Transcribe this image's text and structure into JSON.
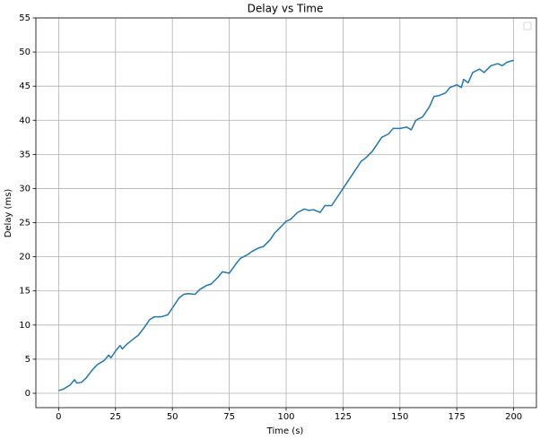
{
  "chart_data": {
    "type": "line",
    "title": "Delay vs Time",
    "xlabel": "Time (s)",
    "ylabel": "Delay (ms)",
    "x": [
      0,
      2,
      5,
      7,
      8,
      10,
      12,
      15,
      17,
      20,
      22,
      23,
      25,
      27,
      28,
      30,
      33,
      35,
      38,
      40,
      42,
      45,
      48,
      50,
      53,
      55,
      57,
      60,
      62,
      65,
      67,
      70,
      72,
      75,
      78,
      80,
      83,
      85,
      88,
      90,
      93,
      95,
      98,
      100,
      102,
      105,
      108,
      110,
      112,
      115,
      117,
      120,
      122,
      125,
      127,
      130,
      133,
      135,
      138,
      140,
      142,
      145,
      147,
      150,
      153,
      155,
      157,
      160,
      163,
      165,
      167,
      170,
      172,
      175,
      177,
      178,
      180,
      182,
      185,
      187,
      190,
      193,
      195,
      197,
      200
    ],
    "values": [
      0.4,
      0.6,
      1.2,
      2.0,
      1.5,
      1.6,
      2.2,
      3.5,
      4.2,
      4.8,
      5.6,
      5.2,
      6.2,
      7.0,
      6.5,
      7.2,
      8.0,
      8.5,
      9.8,
      10.8,
      11.2,
      11.2,
      11.5,
      12.5,
      14.0,
      14.5,
      14.6,
      14.5,
      15.2,
      15.8,
      16.0,
      17.0,
      17.8,
      17.6,
      19.0,
      19.8,
      20.3,
      20.8,
      21.3,
      21.5,
      22.5,
      23.5,
      24.5,
      25.2,
      25.5,
      26.5,
      27.0,
      26.8,
      26.9,
      26.5,
      27.5,
      27.5,
      28.5,
      30.0,
      31.0,
      32.5,
      34.0,
      34.5,
      35.5,
      36.5,
      37.5,
      38.0,
      38.8,
      38.8,
      39.0,
      38.6,
      40.0,
      40.5,
      42.0,
      43.5,
      43.6,
      44.0,
      44.8,
      45.2,
      44.8,
      46.0,
      45.5,
      47.0,
      47.5,
      47.0,
      48.0,
      48.3,
      48.0,
      48.5,
      48.8
    ],
    "color": "#1f77b4",
    "xlim": [
      -10,
      210
    ],
    "xticks": [
      0,
      25,
      50,
      75,
      100,
      125,
      150,
      175,
      200
    ],
    "ylim": [
      -2.1,
      55
    ],
    "yticks": [
      0,
      5,
      10,
      15,
      20,
      25,
      30,
      35,
      40,
      45,
      50,
      55
    ],
    "grid": true
  }
}
